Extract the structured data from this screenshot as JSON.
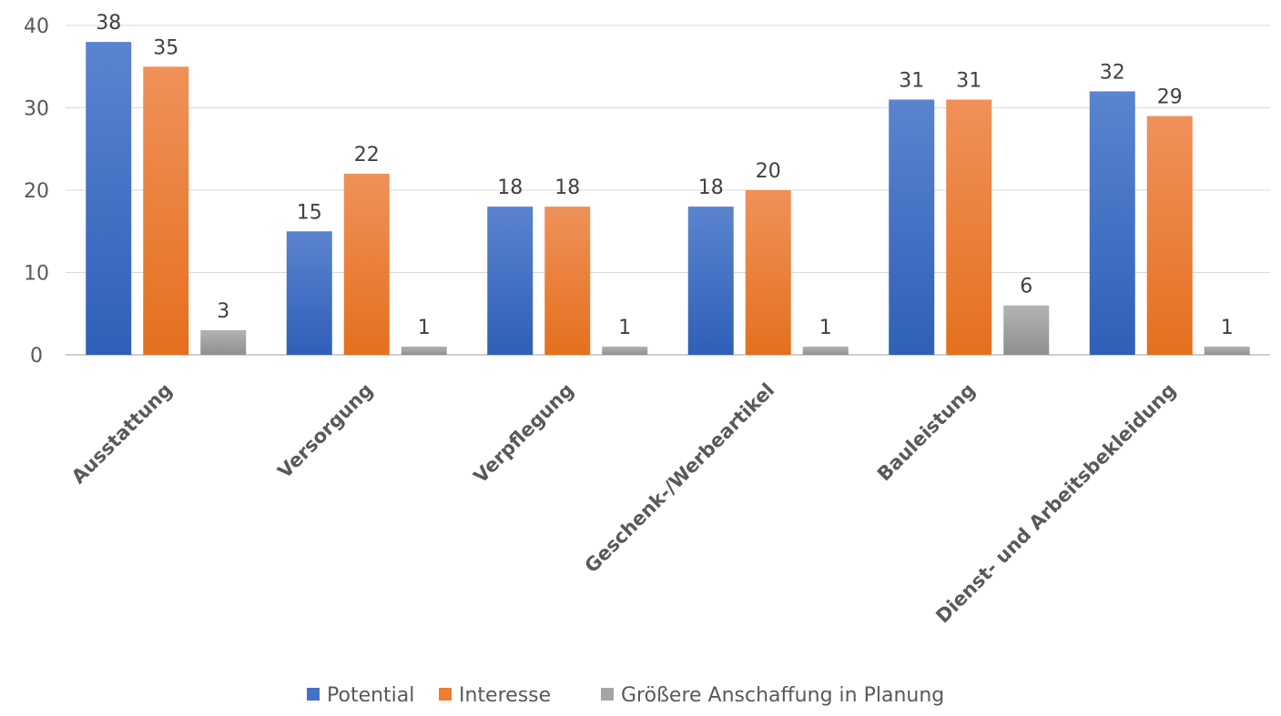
{
  "chart_data": {
    "type": "bar",
    "categories": [
      "Ausstattung",
      "Versorgung",
      "Verpflegung",
      "Geschenk-/Werbeartikel",
      "Bauleistung",
      "Dienst- und Arbeitsbekleidung"
    ],
    "series": [
      {
        "name": "Potential",
        "values": [
          38,
          15,
          18,
          18,
          31,
          32
        ],
        "color": "#4472c4"
      },
      {
        "name": "Interesse",
        "values": [
          35,
          22,
          18,
          20,
          31,
          29
        ],
        "color": "#ed7d31"
      },
      {
        "name": "Größere Anschaffung in Planung",
        "values": [
          3,
          1,
          1,
          1,
          6,
          1
        ],
        "color": "#a5a5a5"
      }
    ],
    "y_ticks": [
      0,
      10,
      20,
      30,
      40
    ],
    "ylim": [
      0,
      40
    ],
    "grid": true,
    "legend_position": "bottom",
    "data_labels": true
  }
}
